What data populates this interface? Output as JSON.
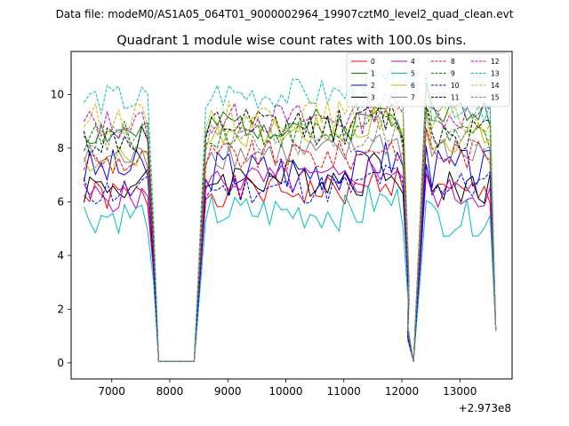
{
  "figure": {
    "suptitle": "Data file: modeM0/AS1A05_064T01_9000002964_19907cztM0_level2_quad_clean.evt",
    "offset_text": "+2.973e8"
  },
  "chart_data": {
    "type": "line",
    "title": "Quadrant 1 module wise count rates with 100.0s bins.",
    "xlabel": "",
    "ylabel": "",
    "xlim": [
      6300,
      13900
    ],
    "ylim": [
      -0.6,
      11.6
    ],
    "x_offset": 297300000,
    "x_ticks": [
      7000,
      8000,
      9000,
      10000,
      11000,
      12000,
      13000
    ],
    "x_tick_labels": [
      "7000",
      "8000",
      "9000",
      "10000",
      "11000",
      "12000",
      "13000"
    ],
    "y_ticks": [
      0,
      2,
      4,
      6,
      8,
      10
    ],
    "y_tick_labels": [
      "0",
      "2",
      "4",
      "6",
      "8",
      "10"
    ],
    "legend_location": "top-right",
    "segment1": {
      "start": 6520,
      "n": 13
    },
    "segment2": {
      "start": 8620,
      "n": 36
    },
    "segment3": {
      "start": 12220,
      "n": 14
    },
    "gap_points": [
      {
        "x": 7810,
        "y": 0.05
      },
      {
        "x": 8000,
        "y": 0.05
      },
      {
        "x": 8200,
        "y": 0.05
      },
      {
        "x": 8420,
        "y": 0.05
      }
    ],
    "series": [
      {
        "name": "0",
        "color": "#ff0000",
        "dash": "solid",
        "level": 6.4,
        "g1": 6.2,
        "g3": 6.3,
        "amp": 0.3,
        "seed": 1
      },
      {
        "name": "1",
        "color": "#008000",
        "dash": "solid",
        "level": 8.9,
        "g1": 8.6,
        "g3": 9.3,
        "amp": 0.3,
        "seed": 2
      },
      {
        "name": "2",
        "color": "#0000ff",
        "dash": "solid",
        "level": 7.2,
        "g1": 7.2,
        "g3": 7.2,
        "amp": 0.4,
        "seed": 3
      },
      {
        "name": "3",
        "color": "#000000",
        "dash": "solid",
        "level": 6.9,
        "g1": 6.6,
        "g3": 6.6,
        "amp": 0.35,
        "seed": 4
      },
      {
        "name": "4",
        "color": "#bf00bf",
        "dash": "solid",
        "level": 6.8,
        "g1": 6.2,
        "g3": 6.3,
        "amp": 0.3,
        "seed": 5
      },
      {
        "name": "5",
        "color": "#00bfbf",
        "dash": "solid",
        "level": 5.6,
        "g1": 5.5,
        "g3": 5.4,
        "amp": 0.35,
        "seed": 6
      },
      {
        "name": "6",
        "color": "#bfbf00",
        "dash": "solid",
        "level": 8.6,
        "g1": 7.6,
        "g3": 8.4,
        "amp": 0.3,
        "seed": 7
      },
      {
        "name": "7",
        "color": "#808080",
        "dash": "solid",
        "level": 7.8,
        "g1": 7.6,
        "g3": 7.8,
        "amp": 0.3,
        "seed": 8
      },
      {
        "name": "8",
        "color": "#ff0000",
        "dash": "dashed",
        "level": 7.7,
        "g1": 7.5,
        "g3": 7.8,
        "amp": 0.3,
        "seed": 9
      },
      {
        "name": "9",
        "color": "#008000",
        "dash": "dashed",
        "level": 8.6,
        "g1": 8.4,
        "g3": 8.5,
        "amp": 0.3,
        "seed": 10
      },
      {
        "name": "10",
        "color": "#0000ff",
        "dash": "dashed",
        "level": 6.5,
        "g1": 6.4,
        "g3": 6.6,
        "amp": 0.3,
        "seed": 11
      },
      {
        "name": "11",
        "color": "#000000",
        "dash": "dashed",
        "level": 8.8,
        "g1": 8.3,
        "g3": 8.6,
        "amp": 0.35,
        "seed": 12
      },
      {
        "name": "12",
        "color": "#bf00bf",
        "dash": "dashed",
        "level": 9.1,
        "g1": 8.9,
        "g3": 9.2,
        "amp": 0.3,
        "seed": 13
      },
      {
        "name": "13",
        "color": "#00bfbf",
        "dash": "dashed",
        "level": 10.0,
        "g1": 9.8,
        "g3": 9.6,
        "amp": 0.3,
        "seed": 14
      },
      {
        "name": "14",
        "color": "#bfbf00",
        "dash": "dashed",
        "level": 9.2,
        "g1": 9.1,
        "g3": 9.0,
        "amp": 0.3,
        "seed": 15
      },
      {
        "name": "15",
        "color": "#808080",
        "dash": "dashed",
        "level": 8.3,
        "g1": 8.4,
        "g3": 8.3,
        "amp": 0.3,
        "seed": 16
      }
    ]
  }
}
